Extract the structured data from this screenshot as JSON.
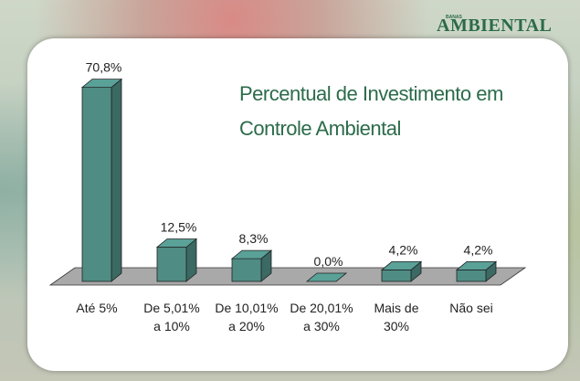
{
  "brand": {
    "small": "BANAS",
    "large": "AMBIENTAL"
  },
  "chart_data": {
    "type": "bar3d",
    "title": "Percentual de Investimento em Controle Ambiental",
    "categories": [
      "Até 5%",
      "De 5,01% a 10%",
      "De 10,01% a 20%",
      "De 20,01% a 30%",
      "Mais de 30%",
      "Não sei"
    ],
    "values": [
      70.8,
      12.5,
      8.3,
      0,
      4.2,
      4.2
    ],
    "value_labels": [
      "70,8%",
      "12,5%",
      "8,3%",
      "0,0%",
      "4,2%",
      "4,2%"
    ],
    "color": "#4e8c84"
  }
}
